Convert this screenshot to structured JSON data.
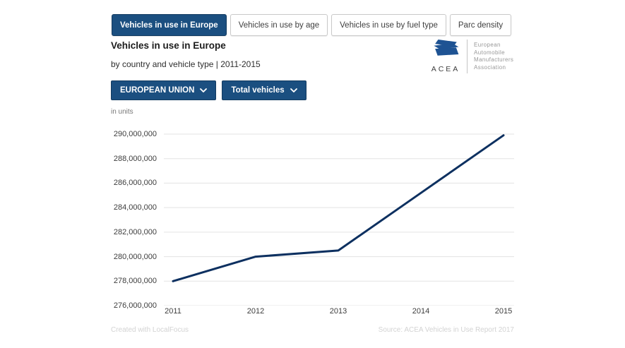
{
  "tabs": {
    "items": [
      {
        "label": "Vehicles in use in Europe",
        "active": true
      },
      {
        "label": "Vehicles in use by age",
        "active": false
      },
      {
        "label": "Vehicles in use by fuel type",
        "active": false
      },
      {
        "label": "Parc density",
        "active": false
      }
    ]
  },
  "header": {
    "title": "Vehicles in use in Europe",
    "subtitle": "by country and vehicle type | 2011-2015"
  },
  "logo": {
    "acronym": "ACEA",
    "org_lines": [
      "European",
      "Automobile",
      "Manufacturers",
      "Association"
    ],
    "brand_color": "#1e5393"
  },
  "filters": {
    "region": "EUROPEAN UNION",
    "vehicle_type": "Total vehicles"
  },
  "chart_data": {
    "type": "line",
    "title": "Vehicles in use in Europe",
    "units_label": "in units",
    "x": [
      "2011",
      "2012",
      "2013",
      "2014",
      "2015"
    ],
    "series": [
      {
        "name": "Total vehicles - European Union",
        "values": [
          278000000,
          280000000,
          280500000,
          285200000,
          289900000
        ]
      }
    ],
    "ylim": [
      276000000,
      290000000
    ],
    "ytick_step": 2000000,
    "yticks": [
      "290,000,000",
      "288,000,000",
      "286,000,000",
      "284,000,000",
      "282,000,000",
      "280,000,000",
      "278,000,000",
      "276,000,000"
    ],
    "grid": "horizontal",
    "legend": "none",
    "line_color": "#0d3060",
    "grid_color": "#e3e3e3"
  },
  "footer": {
    "left": "Created with LocalFocus",
    "right": "Source: ACEA Vehicles in Use Report 2017"
  }
}
